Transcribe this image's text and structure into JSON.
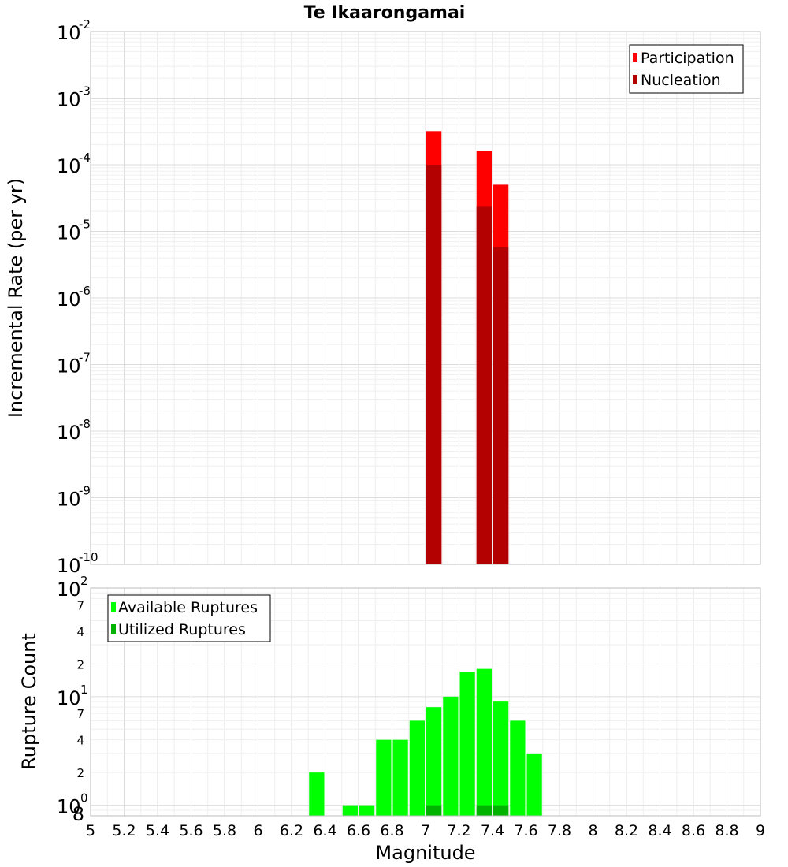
{
  "chart_data": [
    {
      "type": "bar",
      "title": "Te Ikaarongamai",
      "ylabel": "Incremental Rate (per yr)",
      "xlabel": "",
      "xlim": [
        5,
        9
      ],
      "ylim": [
        1e-10,
        0.01
      ],
      "yscale": "log",
      "grid": true,
      "legend_position": "top-right",
      "bar_width": 0.1,
      "series": [
        {
          "name": "Participation",
          "color": "#ff0000",
          "x": [
            7.05,
            7.35,
            7.45
          ],
          "values": [
            0.00032,
            0.00016,
            5e-05
          ]
        },
        {
          "name": "Nucleation",
          "color": "#b30000",
          "x": [
            7.05,
            7.35,
            7.45
          ],
          "values": [
            0.0001,
            2.4e-05,
            5.8e-06
          ]
        }
      ]
    },
    {
      "type": "bar",
      "title": "",
      "ylabel": "Rupture Count",
      "xlabel": "Magnitude",
      "xlim": [
        5,
        9
      ],
      "ylim": [
        0.8,
        100
      ],
      "yscale": "log",
      "grid": true,
      "legend_position": "top-left",
      "bar_width": 0.1,
      "series": [
        {
          "name": "Available Ruptures",
          "color": "#00ff00",
          "x": [
            6.35,
            6.55,
            6.65,
            6.75,
            6.85,
            6.95,
            7.05,
            7.15,
            7.25,
            7.35,
            7.45,
            7.55,
            7.65
          ],
          "values": [
            2,
            1,
            1,
            4,
            4,
            6,
            8,
            10,
            17,
            18,
            9,
            6,
            3
          ]
        },
        {
          "name": "Utilized Ruptures",
          "color": "#00b300",
          "x": [
            7.05,
            7.35,
            7.45
          ],
          "values": [
            1,
            1,
            1
          ]
        }
      ]
    }
  ],
  "x_ticks": [
    "5",
    "5.2",
    "5.4",
    "5.6",
    "5.8",
    "6",
    "6.2",
    "6.4",
    "6.6",
    "6.8",
    "7",
    "7.2",
    "7.4",
    "7.6",
    "7.8",
    "8",
    "8.2",
    "8.4",
    "8.6",
    "8.8",
    "9"
  ],
  "top_y_ticks": [
    {
      "base": "10",
      "exp": "-10"
    },
    {
      "base": "10",
      "exp": "-9"
    },
    {
      "base": "10",
      "exp": "-8"
    },
    {
      "base": "10",
      "exp": "-7"
    },
    {
      "base": "10",
      "exp": "-6"
    },
    {
      "base": "10",
      "exp": "-5"
    },
    {
      "base": "10",
      "exp": "-4"
    },
    {
      "base": "10",
      "exp": "-3"
    },
    {
      "base": "10",
      "exp": "-2"
    }
  ],
  "bottom_y_ticks": {
    "major": [
      {
        "base": "10",
        "exp": "0"
      },
      {
        "base": "10",
        "exp": "1"
      },
      {
        "base": "10",
        "exp": "2"
      }
    ],
    "minor": [
      {
        "value": 0.8,
        "label": "8"
      },
      {
        "value": 2,
        "label": "2"
      },
      {
        "value": 4,
        "label": "4"
      },
      {
        "value": 7,
        "label": "7"
      },
      {
        "value": 20,
        "label": "2"
      },
      {
        "value": 40,
        "label": "4"
      },
      {
        "value": 70,
        "label": "7"
      }
    ]
  }
}
